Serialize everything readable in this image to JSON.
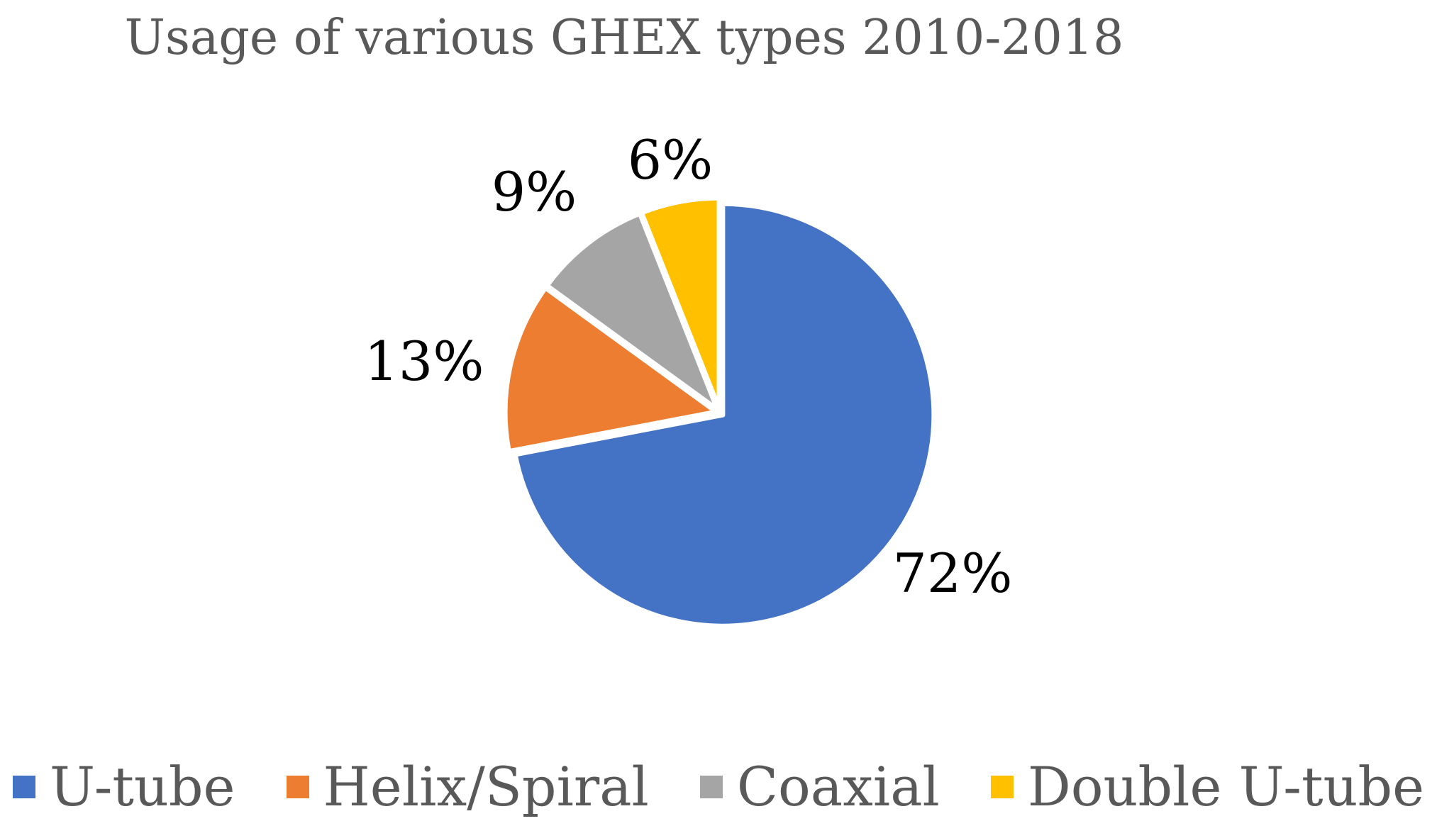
{
  "chart_data": {
    "type": "pie",
    "title": "Usage of various GHEX types 2010-2018",
    "categories": [
      "U-tube",
      "Helix/Spiral",
      "Coaxial",
      "Double U-tube"
    ],
    "values": [
      72,
      13,
      9,
      6
    ],
    "labels": [
      "72%",
      "13%",
      "9%",
      "6%"
    ],
    "colors": [
      "#4472C4",
      "#ED7D31",
      "#A5A5A5",
      "#FFC000"
    ],
    "start_angle_deg": 0,
    "direction": "clockwise",
    "legend_position": "bottom"
  }
}
